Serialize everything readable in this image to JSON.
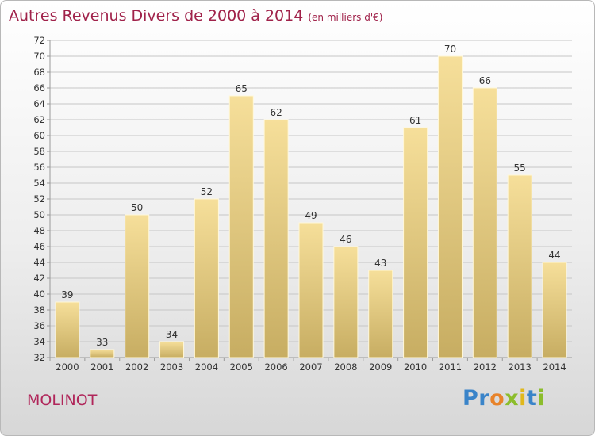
{
  "title": "Autres Revenus Divers de 2000 à 2014",
  "subtitle": "(en milliers d'€)",
  "commune": "MOLINOT",
  "logo": {
    "letters": [
      {
        "char": "P",
        "color": "#3a84c9"
      },
      {
        "char": "r",
        "color": "#3a84c9"
      },
      {
        "char": "o",
        "color": "#e8832a"
      },
      {
        "char": "x",
        "color": "#8cbd2c"
      },
      {
        "char": "i",
        "color": "#e0b81c"
      },
      {
        "char": "t",
        "color": "#3a84c9"
      },
      {
        "char": "i",
        "color": "#8cbd2c"
      }
    ]
  },
  "colors": {
    "title": "#a0224a",
    "bar_top": "#f6df9a",
    "bar_bottom": "#c7ad62",
    "grid": "#c6c6c6"
  },
  "chart_data": {
    "type": "bar",
    "categories": [
      "2000",
      "2001",
      "2002",
      "2003",
      "2004",
      "2005",
      "2006",
      "2007",
      "2008",
      "2009",
      "2010",
      "2011",
      "2012",
      "2013",
      "2014"
    ],
    "values": [
      39,
      33,
      50,
      34,
      52,
      65,
      62,
      49,
      46,
      43,
      61,
      70,
      66,
      55,
      44
    ],
    "ylim": [
      32,
      72
    ],
    "yticks": [
      32,
      34,
      36,
      38,
      40,
      42,
      44,
      46,
      48,
      50,
      52,
      54,
      56,
      58,
      60,
      62,
      64,
      66,
      68,
      70,
      72
    ],
    "grid": true,
    "data_labels": true
  }
}
